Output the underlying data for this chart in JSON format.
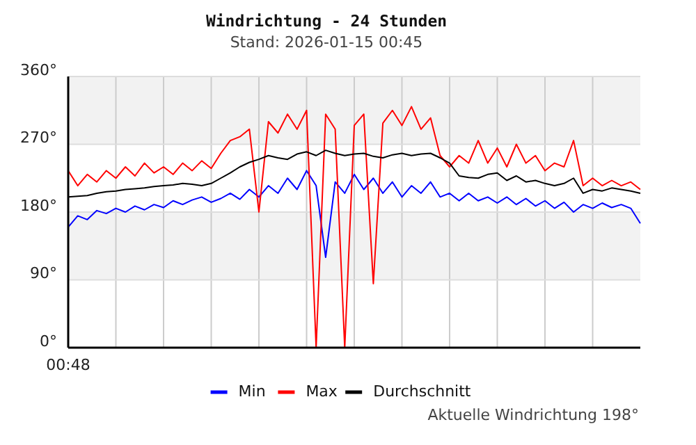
{
  "chart_data": {
    "type": "line",
    "title": "Windrichtung - 24 Stunden",
    "subtitle": "Stand: 2026-01-15 00:45",
    "annotations": [
      "Aktuelle Windrichtung 198°"
    ],
    "categories": [
      "00:48",
      null,
      null,
      null,
      null,
      null,
      null,
      null,
      null,
      null,
      null,
      null,
      null,
      null,
      null,
      null,
      null,
      null,
      null,
      null,
      null,
      null,
      null,
      null,
      null,
      null,
      null,
      null,
      null,
      null,
      null,
      null,
      null,
      null,
      null,
      null,
      null,
      null,
      null,
      null,
      null,
      null,
      null,
      null,
      null,
      null,
      null,
      null,
      null,
      null,
      null,
      null,
      null,
      null,
      null,
      null,
      null,
      null,
      null,
      null,
      null
    ],
    "ylim": [
      0,
      360
    ],
    "yticks": [
      {
        "value": 0,
        "label": "0°"
      },
      {
        "value": 90,
        "label": "90°"
      },
      {
        "value": 180,
        "label": "180°"
      },
      {
        "value": 270,
        "label": "270°"
      },
      {
        "value": 360,
        "label": "360°"
      }
    ],
    "grid": true,
    "legend": "bottom",
    "line_style": "solid",
    "series": [
      {
        "name": "Min",
        "color": "#0000ff",
        "values": [
          160,
          175,
          170,
          182,
          178,
          185,
          180,
          188,
          183,
          190,
          186,
          195,
          190,
          196,
          200,
          193,
          198,
          205,
          197,
          210,
          200,
          215,
          205,
          225,
          210,
          235,
          215,
          120,
          220,
          205,
          230,
          210,
          225,
          205,
          220,
          200,
          215,
          205,
          220,
          200,
          205,
          195,
          205,
          195,
          200,
          192,
          200,
          190,
          198,
          188,
          195,
          185,
          193,
          180,
          190,
          185,
          192,
          186,
          190,
          185,
          165
        ]
      },
      {
        "name": "Max",
        "color": "#ff0000",
        "values": [
          235,
          215,
          230,
          220,
          235,
          225,
          240,
          228,
          245,
          232,
          240,
          230,
          245,
          235,
          248,
          238,
          258,
          275,
          280,
          290,
          180,
          300,
          285,
          310,
          290,
          315,
          0,
          310,
          290,
          0,
          295,
          310,
          85,
          298,
          315,
          295,
          320,
          290,
          305,
          255,
          240,
          255,
          245,
          275,
          245,
          265,
          240,
          270,
          245,
          255,
          235,
          245,
          240,
          275,
          215,
          225,
          215,
          222,
          215,
          220,
          210
        ]
      },
      {
        "name": "Durchschnitt",
        "color": "#000000",
        "values": [
          200,
          201,
          202,
          205,
          207,
          208,
          210,
          211,
          212,
          214,
          215,
          216,
          218,
          217,
          215,
          218,
          225,
          232,
          240,
          246,
          250,
          255,
          252,
          250,
          257,
          260,
          255,
          262,
          258,
          255,
          257,
          258,
          254,
          252,
          256,
          258,
          255,
          257,
          258,
          252,
          245,
          228,
          226,
          225,
          230,
          232,
          222,
          228,
          220,
          222,
          218,
          215,
          218,
          225,
          205,
          210,
          208,
          212,
          210,
          208,
          205
        ]
      }
    ]
  }
}
